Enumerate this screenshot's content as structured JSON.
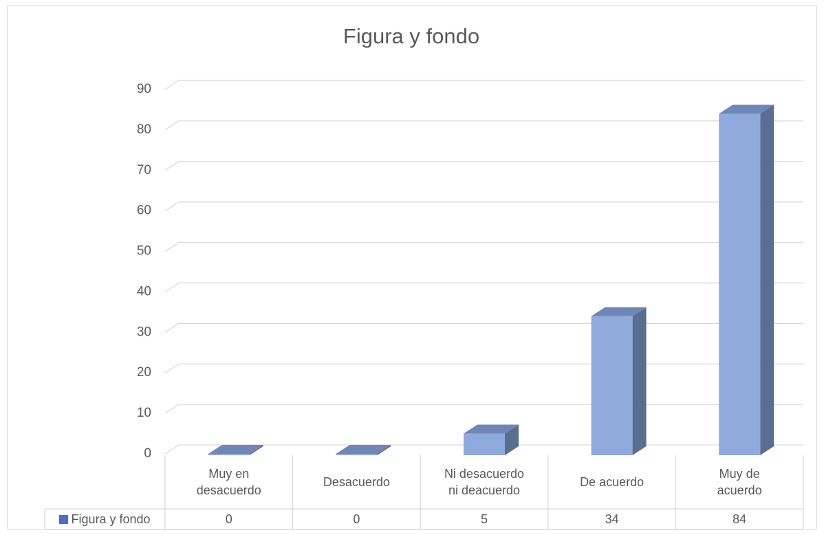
{
  "chart_data": {
    "type": "bar",
    "title": "Figura y fondo",
    "categories": [
      "Muy en desacuerdo",
      "Desacuerdo",
      "Ni desacuerdo ni deacuerdo",
      "De acuerdo",
      "Muy de acuerdo"
    ],
    "series": [
      {
        "name": "Figura y fondo",
        "color": "#4472c4",
        "values": [
          0,
          0,
          5,
          34,
          84
        ]
      }
    ],
    "ylim": [
      0,
      90
    ],
    "yticks": [
      0,
      10,
      20,
      30,
      40,
      50,
      60,
      70,
      80,
      90
    ],
    "grid": true,
    "legend": "data-table"
  }
}
